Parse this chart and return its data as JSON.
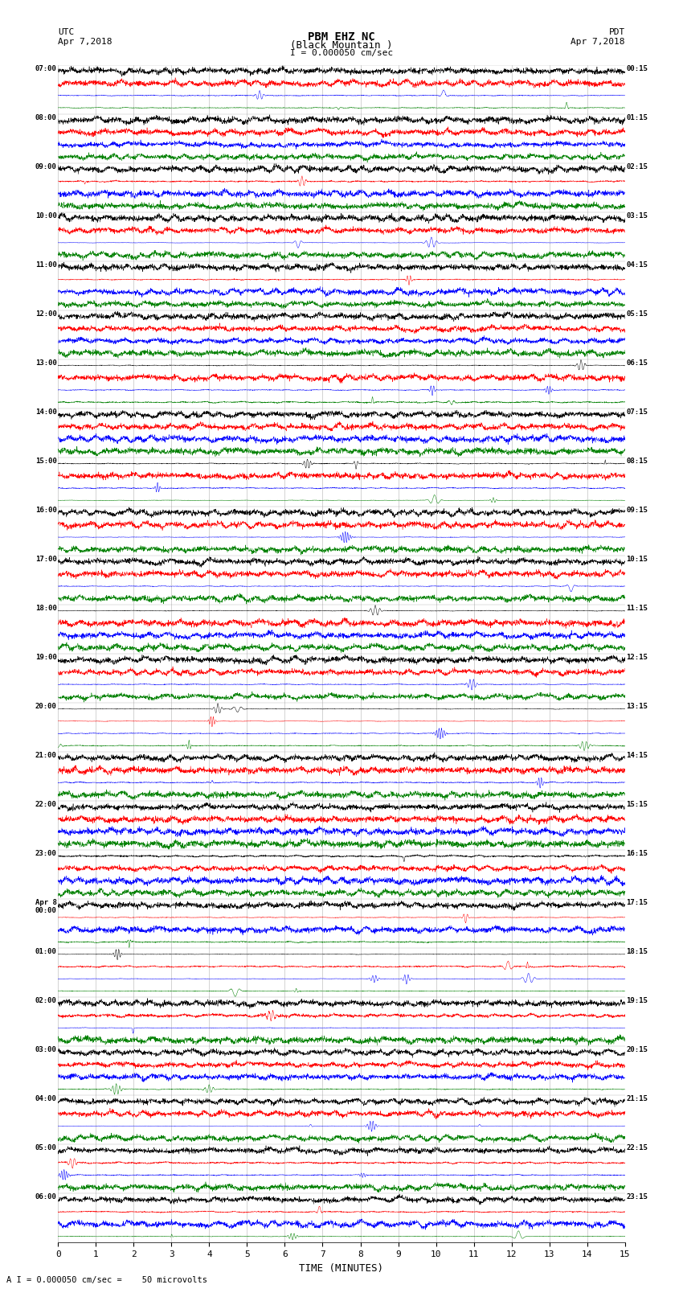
{
  "title_line1": "PBM EHZ NC",
  "title_line2": "(Black Mountain )",
  "scale_label": "I = 0.000050 cm/sec",
  "utc_label": "UTC\nApr 7,2018",
  "pdt_label": "PDT\nApr 7,2018",
  "bottom_label": "A I = 0.000050 cm/sec =    50 microvolts",
  "xlabel": "TIME (MINUTES)",
  "xlim": [
    0,
    15
  ],
  "xticks": [
    0,
    1,
    2,
    3,
    4,
    5,
    6,
    7,
    8,
    9,
    10,
    11,
    12,
    13,
    14,
    15
  ],
  "trace_colors_cycle": [
    "black",
    "red",
    "blue",
    "green"
  ],
  "left_times_utc": [
    "07:00",
    "08:00",
    "09:00",
    "10:00",
    "11:00",
    "12:00",
    "13:00",
    "14:00",
    "15:00",
    "16:00",
    "17:00",
    "18:00",
    "19:00",
    "20:00",
    "21:00",
    "22:00",
    "23:00",
    "Apr 8\n00:00",
    "01:00",
    "02:00",
    "03:00",
    "04:00",
    "05:00",
    "06:00"
  ],
  "right_times_pdt": [
    "00:15",
    "01:15",
    "02:15",
    "03:15",
    "04:15",
    "05:15",
    "06:15",
    "07:15",
    "08:15",
    "09:15",
    "10:15",
    "11:15",
    "12:15",
    "13:15",
    "14:15",
    "15:15",
    "16:15",
    "17:15",
    "18:15",
    "19:15",
    "20:15",
    "21:15",
    "22:15",
    "23:15"
  ],
  "num_rows": 24,
  "traces_per_row": 4,
  "noise_seed": 42,
  "fig_width": 8.5,
  "fig_height": 16.13,
  "background_color": "white",
  "n_points": 3000
}
